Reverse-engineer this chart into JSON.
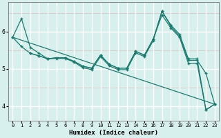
{
  "xlabel": "Humidex (Indice chaleur)",
  "background_color": "#d8f0ed",
  "line_color": "#1a7a6e",
  "xlim": [
    -0.5,
    23.5
  ],
  "ylim": [
    3.6,
    6.8
  ],
  "yticks": [
    4,
    5,
    6
  ],
  "xticks": [
    0,
    1,
    2,
    3,
    4,
    5,
    6,
    7,
    8,
    9,
    10,
    11,
    12,
    13,
    14,
    15,
    16,
    17,
    18,
    19,
    20,
    21,
    22,
    23
  ],
  "line1_x": [
    0,
    1,
    2,
    3,
    4,
    5,
    6,
    7,
    8,
    9,
    10,
    11,
    12,
    13,
    14,
    15,
    16,
    17,
    18,
    19,
    20,
    21,
    22,
    23
  ],
  "line1_y": [
    5.85,
    6.35,
    5.58,
    5.42,
    5.27,
    5.28,
    5.28,
    5.18,
    5.03,
    4.98,
    5.33,
    5.08,
    4.98,
    4.98,
    5.43,
    5.33,
    5.76,
    6.55,
    6.15,
    5.88,
    5.23,
    5.23,
    4.88,
    4.05
  ],
  "line2_x": [
    0,
    1,
    2,
    3,
    4,
    5,
    6,
    7,
    8,
    9,
    10,
    11,
    12,
    13,
    14,
    15,
    16,
    17,
    18,
    19,
    20,
    21,
    22,
    23
  ],
  "line2_y": [
    5.85,
    5.6,
    5.42,
    5.35,
    5.27,
    5.3,
    5.3,
    5.2,
    5.07,
    5.02,
    5.37,
    5.12,
    5.02,
    5.02,
    5.47,
    5.37,
    5.8,
    6.55,
    6.18,
    5.93,
    5.27,
    5.27,
    3.9,
    4.05
  ],
  "line3_x": [
    2,
    3,
    4,
    5,
    6,
    7,
    8,
    9,
    10,
    11,
    12,
    13,
    14,
    15,
    16,
    17,
    18,
    19,
    20,
    21,
    22,
    23
  ],
  "line3_y": [
    5.42,
    5.35,
    5.27,
    5.3,
    5.3,
    5.2,
    5.07,
    5.02,
    5.37,
    5.12,
    5.02,
    5.02,
    5.47,
    5.37,
    5.8,
    6.45,
    6.1,
    5.85,
    5.15,
    5.15,
    3.9,
    4.05
  ],
  "line4_x": [
    0,
    23
  ],
  "line4_y": [
    5.85,
    4.05
  ],
  "lw": 0.9,
  "ms": 3.0,
  "mk": "+"
}
